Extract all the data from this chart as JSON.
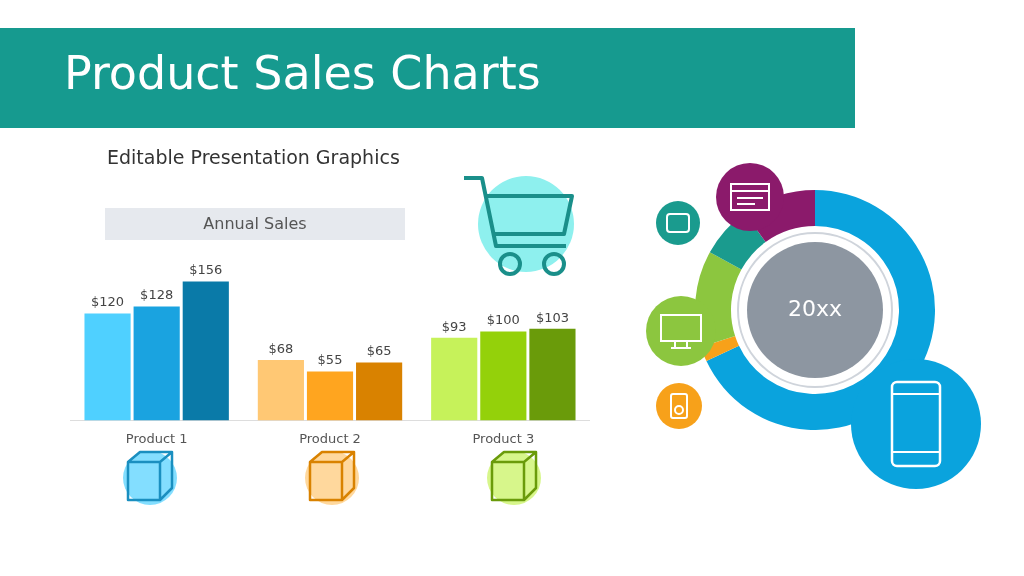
{
  "chart_data": [
    {
      "type": "bar",
      "title": "Product Sales Charts",
      "subtitle": "Editable Presentation Graphics",
      "annotations": [
        "Annual Sales"
      ],
      "categories": [
        "Product 1",
        "Product 2",
        "Product 3"
      ],
      "series": [
        {
          "colors": [
            "#4fd0ff",
            "#ffc874",
            "#c6f25a"
          ],
          "values": [
            120,
            68,
            93
          ],
          "value_labels": [
            "$120",
            "$68",
            "$93"
          ]
        },
        {
          "colors": [
            "#1aa3e0",
            "#ffa51f",
            "#94d10a"
          ],
          "values": [
            128,
            55,
            100
          ],
          "value_labels": [
            "$128",
            "$55",
            "$100"
          ]
        },
        {
          "colors": [
            "#0a7aa8",
            "#d98200",
            "#6a9b0a"
          ],
          "values": [
            156,
            65,
            103
          ],
          "value_labels": [
            "$156",
            "$65",
            "$103"
          ]
        }
      ]
    },
    {
      "type": "donut",
      "annotations": [
        "20xx"
      ],
      "categories": [
        null,
        null,
        null,
        null,
        null
      ],
      "values": [
        68,
        2,
        13,
        7,
        10
      ],
      "colors": [
        "#0aa3dd",
        "#f7a11a",
        "#8cc63f",
        "#1a9b8e",
        "#8b1a6b"
      ]
    }
  ]
}
